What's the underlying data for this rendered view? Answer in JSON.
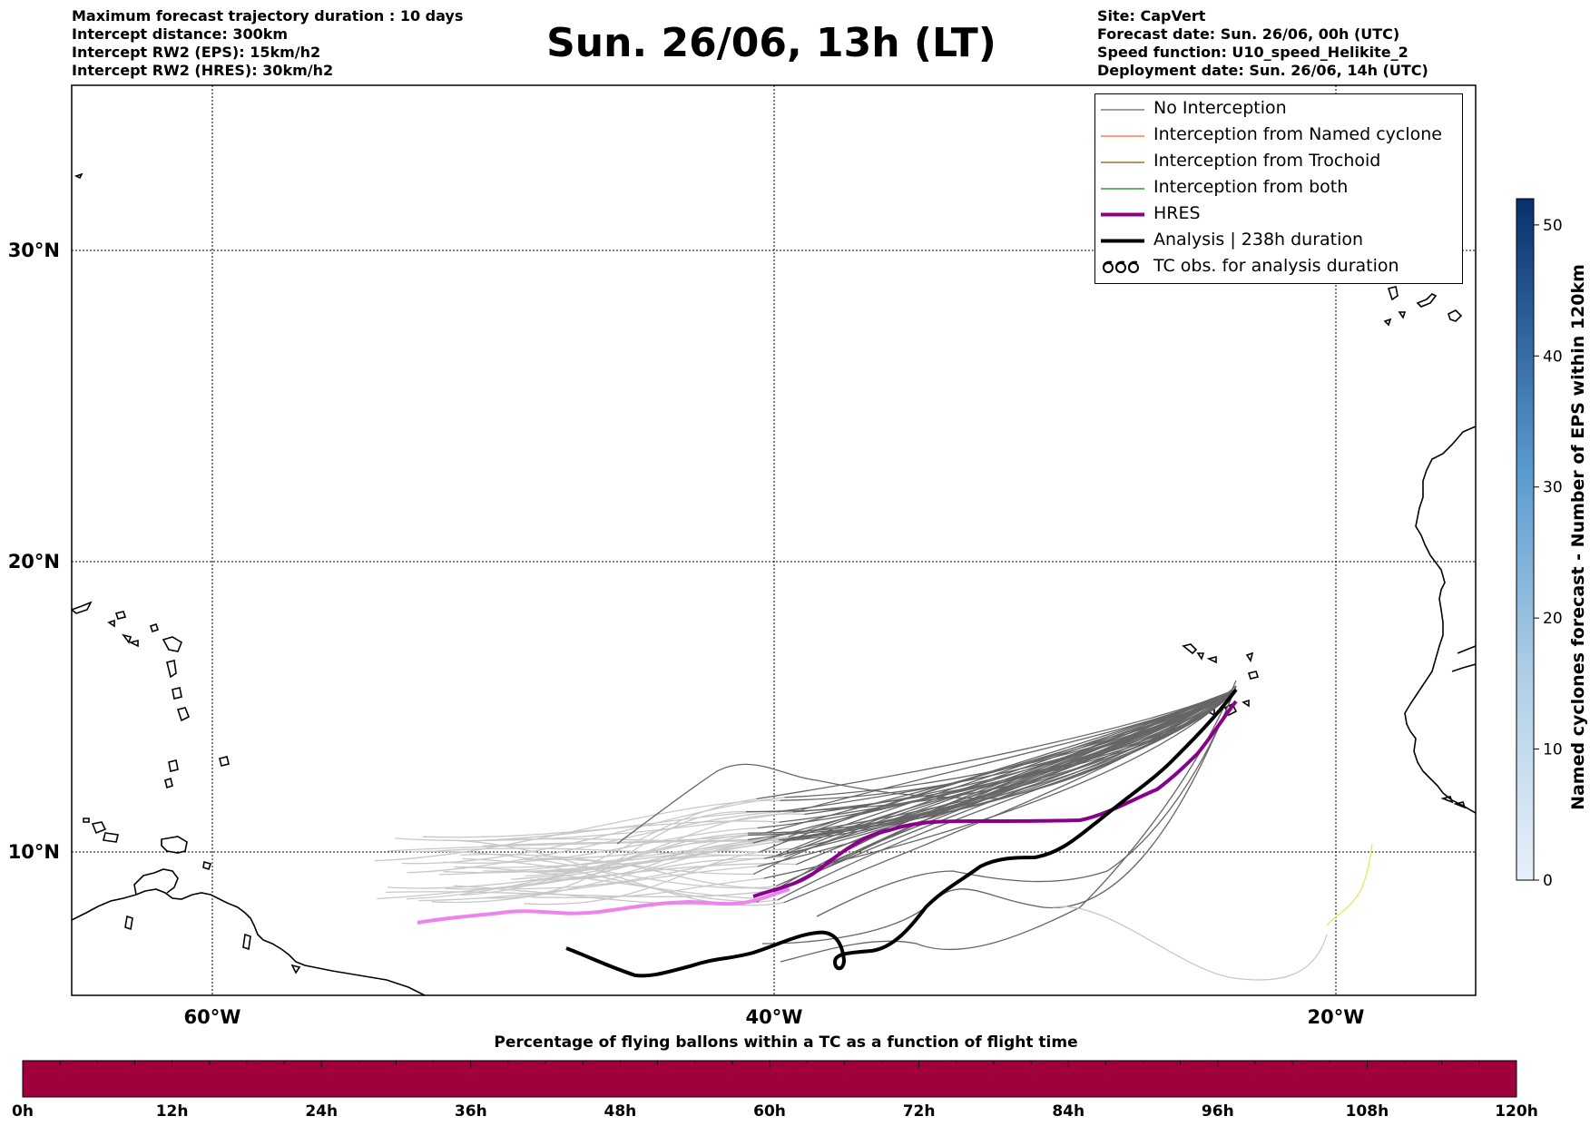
{
  "info_left": [
    "Maximum forecast trajectory duration : 10 days",
    "Intercept distance: 300km",
    "Intercept RW2 (EPS):  15km/h2",
    "Intercept RW2 (HRES): 30km/h2"
  ],
  "info_right": [
    "Site: CapVert",
    "Forecast date: Sun. 26/06, 00h (UTC)",
    "Speed function: U10_speed_Helikite_2",
    "Deployment date: Sun. 26/06, 14h (UTC)"
  ],
  "title": "Sun. 26/06, 13h (LT)",
  "legend": [
    {
      "label": "No Interception",
      "color": "#7f7f7f",
      "kind": "line"
    },
    {
      "label": "Interception from Named cyclone",
      "color": "#ff7f50",
      "kind": "line"
    },
    {
      "label": "Interception from Trochoid",
      "color": "#8b7d2a",
      "kind": "line"
    },
    {
      "label": "Interception from both",
      "color": "#2ca02c",
      "kind": "line"
    },
    {
      "label": "HRES",
      "color": "#8b008b",
      "kind": "thick"
    },
    {
      "label": "Analysis | 238h duration",
      "color": "#000000",
      "kind": "thick"
    },
    {
      "label": "TC obs. for analysis duration",
      "color": "#000000",
      "kind": "tc"
    }
  ],
  "map": {
    "lon_ticks": [
      "60°W",
      "40°W",
      "20°W"
    ],
    "lat_ticks": [
      "30°N",
      "20°N",
      "10°N"
    ]
  },
  "colorbar": {
    "label": "Named cyclones forecast - Number of EPS within 120km",
    "ticks": [
      "0",
      "10",
      "20",
      "30",
      "40",
      "50"
    ],
    "range": [
      0,
      52
    ]
  },
  "time_bar": {
    "title": "Percentage of flying ballons within a TC as a function of flight time",
    "ticks": [
      "0h",
      "12h",
      "24h",
      "36h",
      "48h",
      "60h",
      "72h",
      "84h",
      "96h",
      "108h",
      "120h"
    ],
    "color": "#a0003c"
  },
  "colors": {
    "hres_mid": "#8b008b",
    "hres_early": "#ee82ee",
    "ensemble_late": "#666666",
    "ensemble_early": "#c8c8c8",
    "analysis": "#000000",
    "yellow_track": "#e6e64c"
  }
}
